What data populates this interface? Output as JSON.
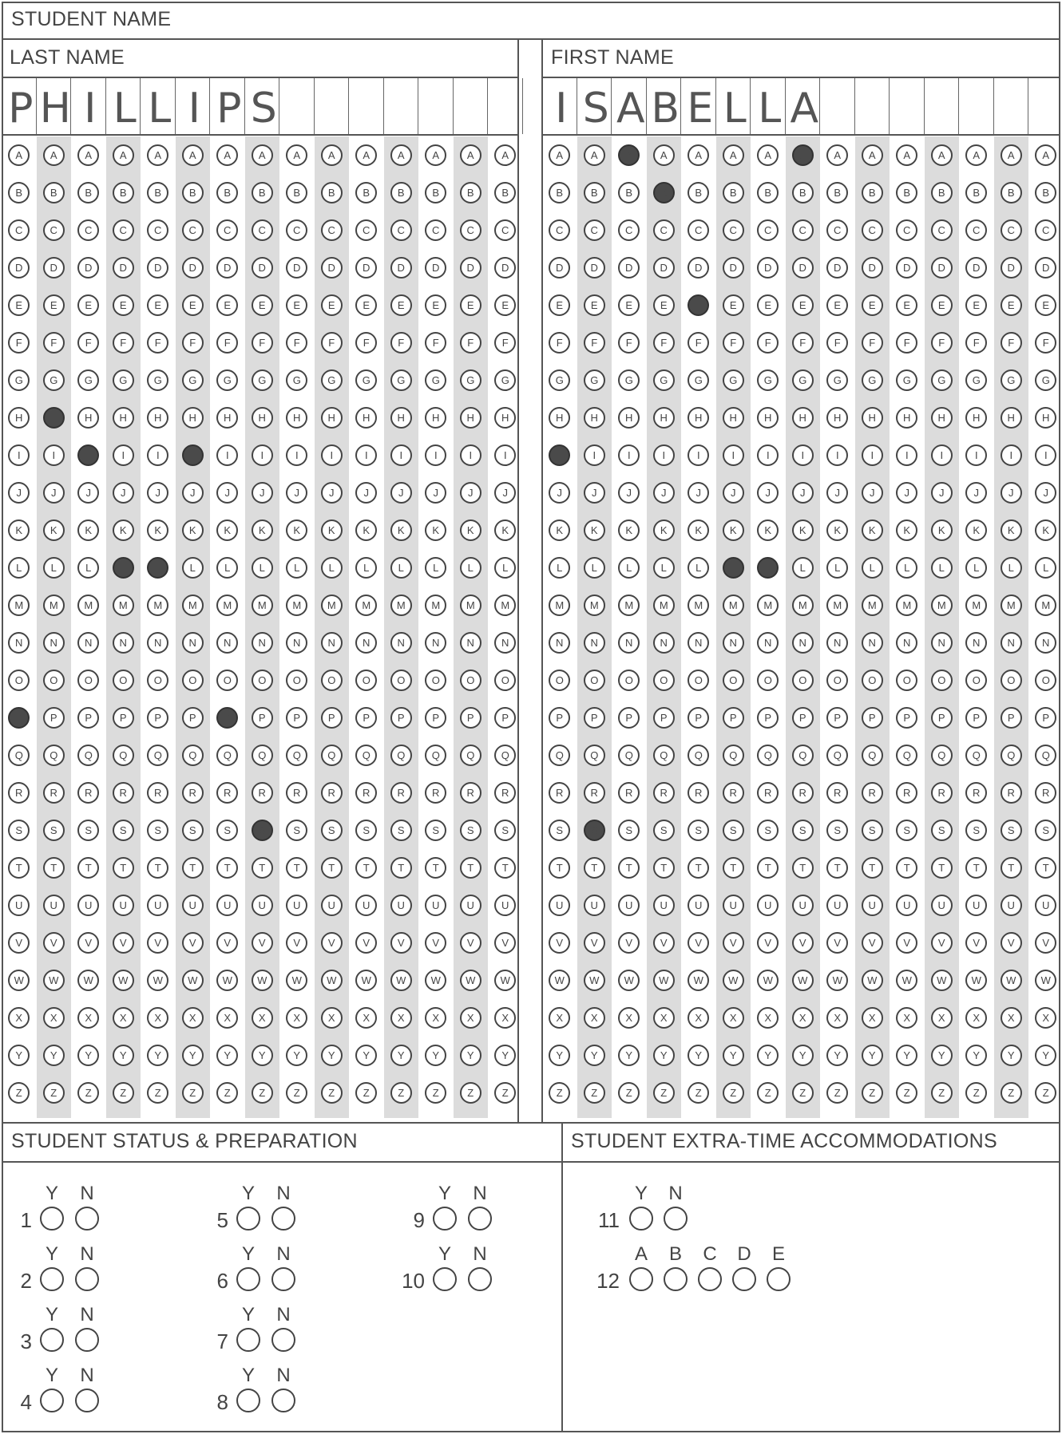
{
  "sheet": {
    "student_name_header": "STUDENT NAME",
    "last_name_header": "LAST NAME",
    "first_name_header": "FIRST NAME",
    "letters": [
      "A",
      "B",
      "C",
      "D",
      "E",
      "F",
      "G",
      "H",
      "I",
      "J",
      "K",
      "L",
      "M",
      "N",
      "O",
      "P",
      "Q",
      "R",
      "S",
      "T",
      "U",
      "V",
      "W",
      "X",
      "Y",
      "Z"
    ],
    "last_name": {
      "written": [
        "P",
        "H",
        "I",
        "L",
        "L",
        "I",
        "P",
        "S",
        "",
        "",
        "",
        "",
        "",
        "",
        ""
      ],
      "filled": [
        "P",
        "H",
        "I",
        "L",
        "L",
        "I",
        "P",
        "S",
        "",
        "",
        "",
        "",
        "",
        "",
        ""
      ]
    },
    "first_name": {
      "written": [
        "I",
        "S",
        "A",
        "B",
        "E",
        "L",
        "L",
        "A",
        "",
        "",
        "",
        "",
        "",
        "",
        ""
      ],
      "filled": [
        "I",
        "S",
        "A",
        "B",
        "E",
        "L",
        "L",
        "A",
        "",
        "",
        "",
        "",
        "",
        "",
        ""
      ]
    }
  },
  "status_section": {
    "header": "STUDENT STATUS & PREPARATION",
    "yes_label": "Y",
    "no_label": "N",
    "questions": [
      "1",
      "2",
      "3",
      "4",
      "5",
      "6",
      "7",
      "8",
      "9",
      "10"
    ]
  },
  "accommodations_section": {
    "header": "STUDENT EXTRA-TIME ACCOMMODATIONS",
    "q11": {
      "number": "11",
      "options": [
        "Y",
        "N"
      ]
    },
    "q12": {
      "number": "12",
      "options": [
        "A",
        "B",
        "C",
        "D",
        "E"
      ]
    }
  }
}
